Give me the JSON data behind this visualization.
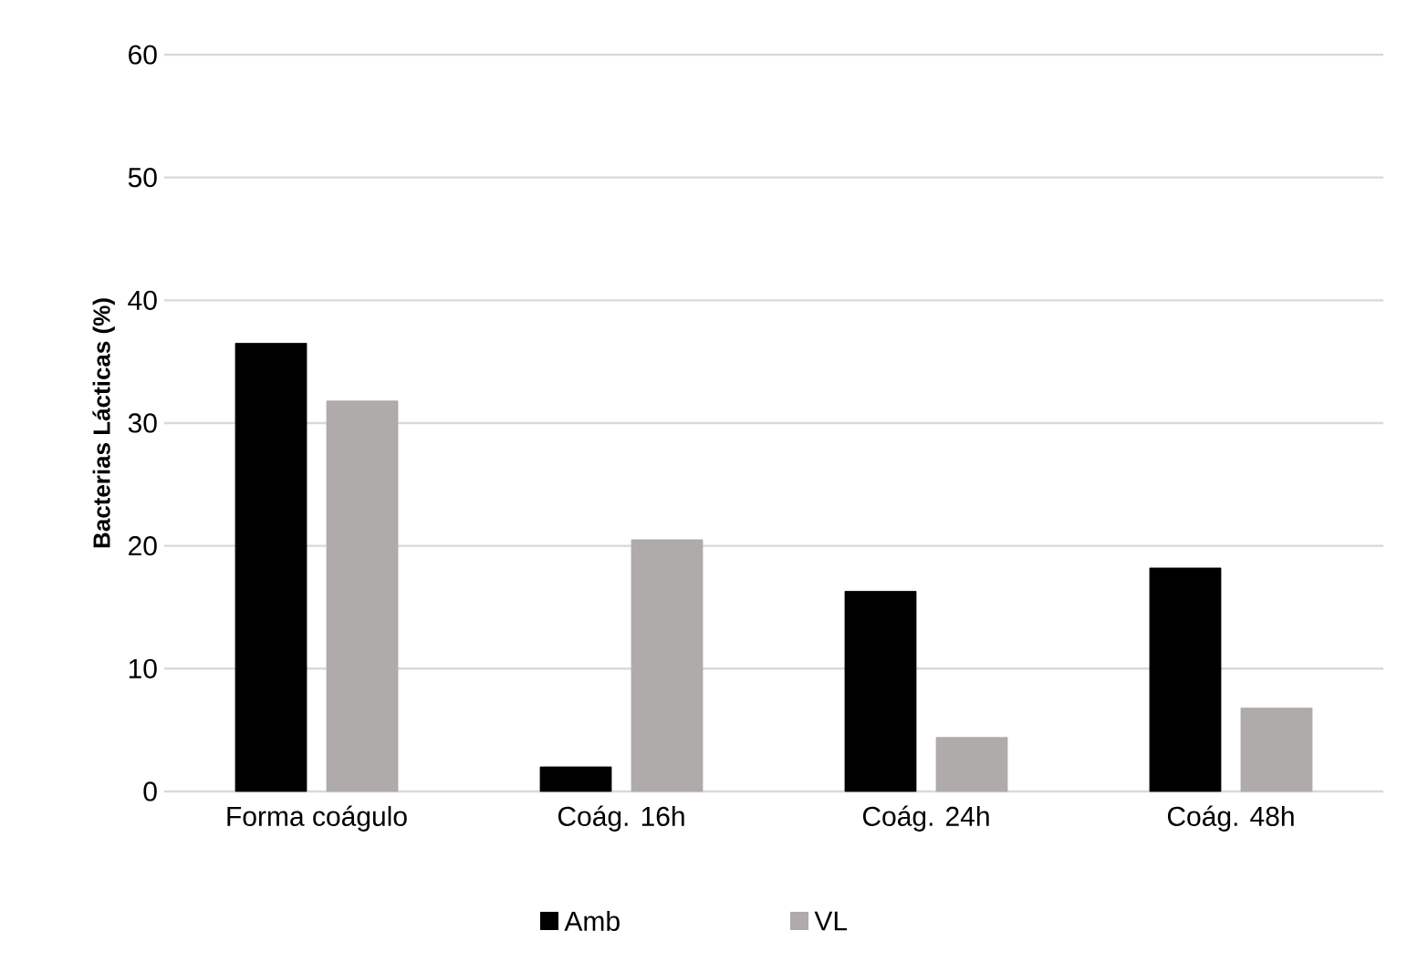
{
  "chart_data": {
    "type": "bar",
    "ylabel": "Bacterias Lácticas (%)",
    "categories": [
      "Forma coágulo",
      "Coág. 16h",
      "Coág. 24h",
      "Coág. 48h"
    ],
    "series": [
      {
        "name": "Amb",
        "color": "#000000",
        "values": [
          36.5,
          2.0,
          16.3,
          18.2
        ]
      },
      {
        "name": "VL",
        "color": "#afabab",
        "values": [
          31.8,
          20.5,
          4.4,
          6.8
        ]
      }
    ],
    "ylim": [
      0,
      60
    ],
    "yticks": [
      0,
      10,
      20,
      30,
      40,
      50,
      60
    ],
    "grid": "y",
    "legend": "bottom"
  }
}
